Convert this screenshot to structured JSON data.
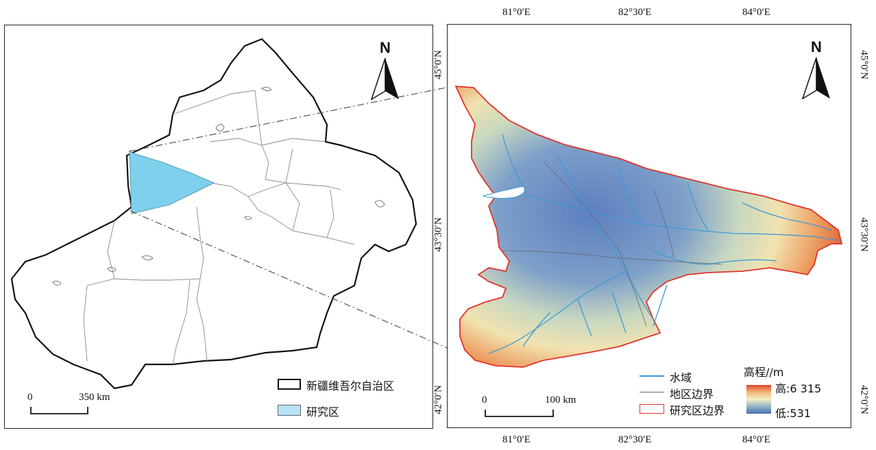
{
  "north_label": "N",
  "left_map": {
    "legend": [
      {
        "label": "新疆维吾尔自治区",
        "color": "#ffffff",
        "stroke": "#111111"
      },
      {
        "label": "研究区",
        "color": "#7fd0ec",
        "stroke": "#555555"
      }
    ],
    "scale": {
      "zero": "0",
      "end": "350 km"
    }
  },
  "right_map": {
    "top_lon_labels": [
      "81°0′E",
      "82°30′E",
      "84°0′E"
    ],
    "bottom_lon_labels": [
      "81°0′E",
      "82°30′E",
      "84°0′E"
    ],
    "left_lat_labels": [
      "45°0′N",
      "43°30′N",
      "42°0′N"
    ],
    "right_lat_labels": [
      "45°0′N",
      "43°30′N",
      "42°0′N"
    ],
    "legend": [
      {
        "label": "水域",
        "color": "#3a9ad6",
        "kind": "line"
      },
      {
        "label": "地区边界",
        "color": "#666666",
        "kind": "thin-line"
      },
      {
        "label": "研究区边界",
        "color": "#e0322a",
        "kind": "box"
      }
    ],
    "elevation": {
      "title": "高程//m",
      "high": "高:6 315",
      "low": "低:531",
      "color_high": "#e0432c",
      "color_low": "#4a6fb0"
    },
    "scale": {
      "zero": "0",
      "end": "100 km"
    }
  }
}
